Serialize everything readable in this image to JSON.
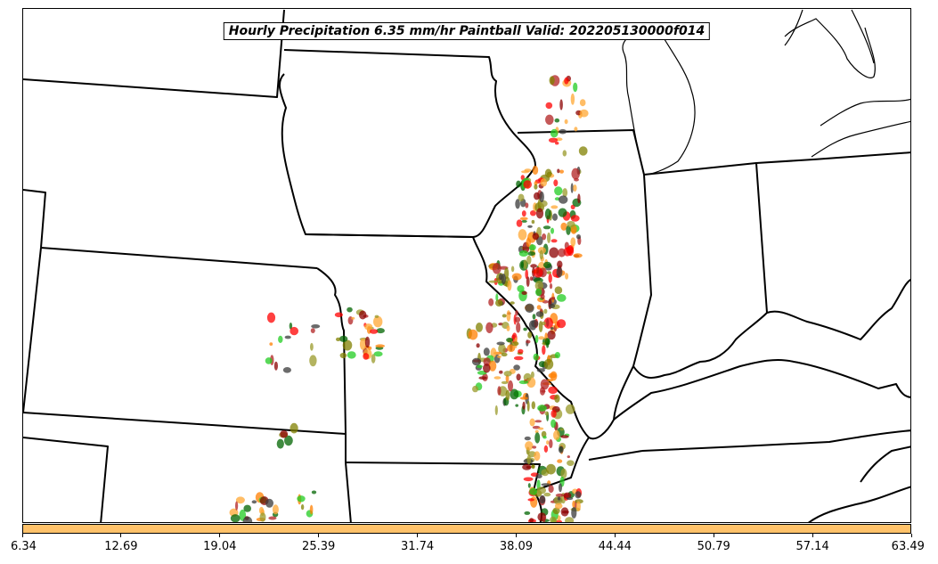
{
  "title": "Hourly Precipitation 6.35 mm/hr Paintball Valid: 202205130000f014",
  "colorbar": {
    "color": "#ffc26a",
    "ticks": [
      "6.34",
      "12.69",
      "19.04",
      "25.39",
      "31.74",
      "38.09",
      "44.44",
      "50.79",
      "57.14",
      "63.49"
    ]
  },
  "member_colors": [
    "#ff0000",
    "#b22222",
    "#8b0000",
    "#ff7f00",
    "#ffa733",
    "#9a9a2a",
    "#808000",
    "#006400",
    "#22cc22",
    "#3a3a3a"
  ]
}
